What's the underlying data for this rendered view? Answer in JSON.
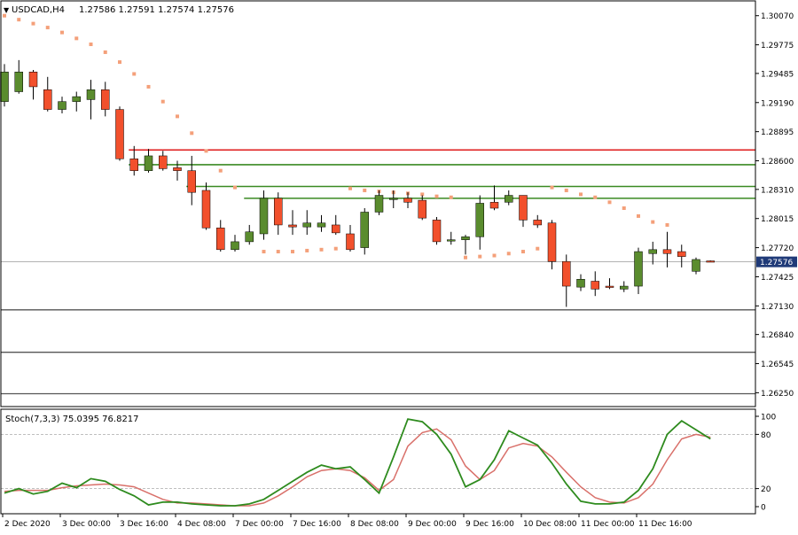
{
  "header": {
    "arrow": "▼",
    "symbol": "USDCAD,H4",
    "ohlc": "1.27586 1.27591 1.27574 1.27576"
  },
  "price_axis": {
    "ticks": [
      "1.30070",
      "1.29775",
      "1.29485",
      "1.29190",
      "1.28895",
      "1.28600",
      "1.28310",
      "1.28015",
      "1.27720",
      "1.27425",
      "1.27130",
      "1.26840",
      "1.26545",
      "1.26250"
    ],
    "current_label": "1.27576"
  },
  "stoch": {
    "header": "Stoch(7,3,3) 75.0395 76.8217",
    "ticks": [
      "100",
      "80",
      "20",
      "0"
    ]
  },
  "time_axis": {
    "labels": [
      "2 Dec 2020",
      "3 Dec 00:00",
      "3 Dec 16:00",
      "4 Dec 08:00",
      "7 Dec 00:00",
      "7 Dec 16:00",
      "8 Dec 08:00",
      "9 Dec 00:00",
      "9 Dec 16:00",
      "10 Dec 08:00",
      "11 Dec 00:00",
      "11 Dec 16:00"
    ]
  },
  "colors": {
    "bull": "#5a8c2e",
    "bear": "#f2502c",
    "sar": "#f4a07a",
    "main_line": "#2e8b1e",
    "signal_line": "#d9706a",
    "red_level": "#e02222",
    "green_level": "#3a8a22",
    "black_level": "#555555",
    "current_price": "#999999",
    "label_bg": "#1f3a78"
  },
  "chart_data": {
    "type": "candlestick",
    "symbol": "USDCAD",
    "timeframe": "H4",
    "ylim": [
      1.2611,
      1.3022
    ],
    "candles": [
      {
        "o": 1.292,
        "h": 1.2958,
        "l": 1.2915,
        "c": 1.295
      },
      {
        "o": 1.293,
        "h": 1.2962,
        "l": 1.2928,
        "c": 1.295
      },
      {
        "o": 1.295,
        "h": 1.2952,
        "l": 1.2922,
        "c": 1.2935
      },
      {
        "o": 1.2932,
        "h": 1.2945,
        "l": 1.291,
        "c": 1.2912
      },
      {
        "o": 1.2912,
        "h": 1.2925,
        "l": 1.2908,
        "c": 1.292
      },
      {
        "o": 1.292,
        "h": 1.293,
        "l": 1.291,
        "c": 1.2925
      },
      {
        "o": 1.2922,
        "h": 1.2942,
        "l": 1.2902,
        "c": 1.2932
      },
      {
        "o": 1.2932,
        "h": 1.294,
        "l": 1.2905,
        "c": 1.2912
      },
      {
        "o": 1.2912,
        "h": 1.2915,
        "l": 1.286,
        "c": 1.2862
      },
      {
        "o": 1.2862,
        "h": 1.2875,
        "l": 1.2845,
        "c": 1.285
      },
      {
        "o": 1.285,
        "h": 1.2872,
        "l": 1.2848,
        "c": 1.2865
      },
      {
        "o": 1.2865,
        "h": 1.287,
        "l": 1.285,
        "c": 1.2852
      },
      {
        "o": 1.2853,
        "h": 1.286,
        "l": 1.284,
        "c": 1.285
      },
      {
        "o": 1.285,
        "h": 1.2865,
        "l": 1.2815,
        "c": 1.2828
      },
      {
        "o": 1.283,
        "h": 1.2838,
        "l": 1.279,
        "c": 1.2792
      },
      {
        "o": 1.2792,
        "h": 1.28,
        "l": 1.2768,
        "c": 1.277
      },
      {
        "o": 1.277,
        "h": 1.2785,
        "l": 1.2768,
        "c": 1.2778
      },
      {
        "o": 1.2778,
        "h": 1.2795,
        "l": 1.2775,
        "c": 1.2788
      },
      {
        "o": 1.2786,
        "h": 1.283,
        "l": 1.278,
        "c": 1.2822
      },
      {
        "o": 1.2822,
        "h": 1.2828,
        "l": 1.2785,
        "c": 1.2795
      },
      {
        "o": 1.2795,
        "h": 1.281,
        "l": 1.2785,
        "c": 1.2793
      },
      {
        "o": 1.2793,
        "h": 1.281,
        "l": 1.2785,
        "c": 1.2797
      },
      {
        "o": 1.2793,
        "h": 1.2805,
        "l": 1.2788,
        "c": 1.2797
      },
      {
        "o": 1.2795,
        "h": 1.2805,
        "l": 1.2785,
        "c": 1.2787
      },
      {
        "o": 1.2786,
        "h": 1.2795,
        "l": 1.2768,
        "c": 1.277
      },
      {
        "o": 1.2772,
        "h": 1.2812,
        "l": 1.2765,
        "c": 1.2808
      },
      {
        "o": 1.2808,
        "h": 1.283,
        "l": 1.2805,
        "c": 1.2825
      },
      {
        "o": 1.2822,
        "h": 1.283,
        "l": 1.2812,
        "c": 1.2822
      },
      {
        "o": 1.2822,
        "h": 1.2828,
        "l": 1.2812,
        "c": 1.2818
      },
      {
        "o": 1.282,
        "h": 1.2825,
        "l": 1.28,
        "c": 1.2802
      },
      {
        "o": 1.28,
        "h": 1.2803,
        "l": 1.2775,
        "c": 1.2778
      },
      {
        "o": 1.2779,
        "h": 1.2788,
        "l": 1.2775,
        "c": 1.278
      },
      {
        "o": 1.278,
        "h": 1.2785,
        "l": 1.2765,
        "c": 1.2783
      },
      {
        "o": 1.2783,
        "h": 1.2825,
        "l": 1.277,
        "c": 1.2817
      },
      {
        "o": 1.2818,
        "h": 1.2835,
        "l": 1.281,
        "c": 1.2812
      },
      {
        "o": 1.2818,
        "h": 1.283,
        "l": 1.2815,
        "c": 1.2825
      },
      {
        "o": 1.2825,
        "h": 1.2825,
        "l": 1.2793,
        "c": 1.28
      },
      {
        "o": 1.28,
        "h": 1.2805,
        "l": 1.2792,
        "c": 1.2795
      },
      {
        "o": 1.2797,
        "h": 1.28,
        "l": 1.275,
        "c": 1.2758
      },
      {
        "o": 1.2758,
        "h": 1.2765,
        "l": 1.2712,
        "c": 1.2733
      },
      {
        "o": 1.2732,
        "h": 1.2745,
        "l": 1.2728,
        "c": 1.274
      },
      {
        "o": 1.2738,
        "h": 1.2748,
        "l": 1.2723,
        "c": 1.273
      },
      {
        "o": 1.2733,
        "h": 1.2741,
        "l": 1.273,
        "c": 1.2732
      },
      {
        "o": 1.273,
        "h": 1.2738,
        "l": 1.2727,
        "c": 1.2733
      },
      {
        "o": 1.2733,
        "h": 1.2772,
        "l": 1.2725,
        "c": 1.2768
      },
      {
        "o": 1.2766,
        "h": 1.2778,
        "l": 1.2755,
        "c": 1.277
      },
      {
        "o": 1.277,
        "h": 1.2788,
        "l": 1.2752,
        "c": 1.2766
      },
      {
        "o": 1.2768,
        "h": 1.2775,
        "l": 1.2752,
        "c": 1.2763
      },
      {
        "o": 1.2748,
        "h": 1.2762,
        "l": 1.2745,
        "c": 1.276
      },
      {
        "o": 1.27586,
        "h": 1.27591,
        "l": 1.27574,
        "c": 1.27576
      }
    ],
    "parabolic_sar": [
      {
        "i": 0,
        "v": 1.3007
      },
      {
        "i": 1,
        "v": 1.3003
      },
      {
        "i": 2,
        "v": 1.2999
      },
      {
        "i": 3,
        "v": 1.2995
      },
      {
        "i": 4,
        "v": 1.299
      },
      {
        "i": 5,
        "v": 1.2984
      },
      {
        "i": 6,
        "v": 1.2978
      },
      {
        "i": 7,
        "v": 1.297
      },
      {
        "i": 8,
        "v": 1.296
      },
      {
        "i": 9,
        "v": 1.2948
      },
      {
        "i": 10,
        "v": 1.2935
      },
      {
        "i": 11,
        "v": 1.292
      },
      {
        "i": 12,
        "v": 1.2905
      },
      {
        "i": 13,
        "v": 1.2888
      },
      {
        "i": 14,
        "v": 1.287
      },
      {
        "i": 15,
        "v": 1.285
      },
      {
        "i": 16,
        "v": 1.2833
      },
      {
        "i": 18,
        "v": 1.2768
      },
      {
        "i": 19,
        "v": 1.2768
      },
      {
        "i": 20,
        "v": 1.2768
      },
      {
        "i": 21,
        "v": 1.2769
      },
      {
        "i": 22,
        "v": 1.277
      },
      {
        "i": 23,
        "v": 1.2771
      },
      {
        "i": 24,
        "v": 1.2832
      },
      {
        "i": 25,
        "v": 1.283
      },
      {
        "i": 26,
        "v": 1.2829
      },
      {
        "i": 27,
        "v": 1.2828
      },
      {
        "i": 28,
        "v": 1.2827
      },
      {
        "i": 29,
        "v": 1.2826
      },
      {
        "i": 30,
        "v": 1.2824
      },
      {
        "i": 31,
        "v": 1.2823
      },
      {
        "i": 32,
        "v": 1.2762
      },
      {
        "i": 33,
        "v": 1.2763
      },
      {
        "i": 34,
        "v": 1.2764
      },
      {
        "i": 35,
        "v": 1.2766
      },
      {
        "i": 36,
        "v": 1.2768
      },
      {
        "i": 37,
        "v": 1.2771
      },
      {
        "i": 38,
        "v": 1.2833
      },
      {
        "i": 39,
        "v": 1.283
      },
      {
        "i": 40,
        "v": 1.2826
      },
      {
        "i": 41,
        "v": 1.2823
      },
      {
        "i": 42,
        "v": 1.2818
      },
      {
        "i": 43,
        "v": 1.2812
      },
      {
        "i": 44,
        "v": 1.2804
      },
      {
        "i": 45,
        "v": 1.2798
      },
      {
        "i": 46,
        "v": 1.2795
      }
    ],
    "horizontal_levels": [
      {
        "price": 1.2871,
        "color": "red",
        "from_candle": 9
      },
      {
        "price": 1.2856,
        "color": "green",
        "from_candle": 9
      },
      {
        "price": 1.2834,
        "color": "green",
        "from_candle": 13
      },
      {
        "price": 1.2822,
        "color": "green",
        "from_candle": 17
      },
      {
        "price": 1.27576,
        "color": "gray",
        "from_candle": 0
      },
      {
        "price": 1.2709,
        "color": "black",
        "from_candle": 0
      },
      {
        "price": 1.2666,
        "color": "black",
        "from_candle": 0
      },
      {
        "price": 1.2624,
        "color": "black",
        "from_candle": 0
      }
    ],
    "stochastic": {
      "ylim": [
        0,
        100
      ],
      "levels": [
        80,
        20
      ],
      "main": [
        15,
        20,
        14,
        17,
        26,
        21,
        31,
        28,
        19,
        12,
        2,
        5,
        5,
        3,
        2,
        1,
        1,
        3,
        8,
        18,
        28,
        38,
        46,
        42,
        44,
        30,
        15,
        55,
        97,
        94,
        80,
        58,
        22,
        30,
        52,
        84,
        76,
        68,
        48,
        25,
        6,
        3,
        3,
        5,
        18,
        42,
        80,
        95,
        85,
        75.0395
      ],
      "signal": [
        17,
        18,
        18,
        18,
        21,
        23,
        24,
        25,
        24,
        22,
        15,
        8,
        4,
        4,
        3,
        2,
        1,
        1,
        4,
        12,
        22,
        33,
        40,
        42,
        40,
        32,
        18,
        30,
        67,
        82,
        86,
        74,
        45,
        30,
        40,
        65,
        70,
        67,
        55,
        38,
        22,
        10,
        5,
        4,
        10,
        25,
        52,
        75,
        80,
        76.8217
      ]
    }
  }
}
